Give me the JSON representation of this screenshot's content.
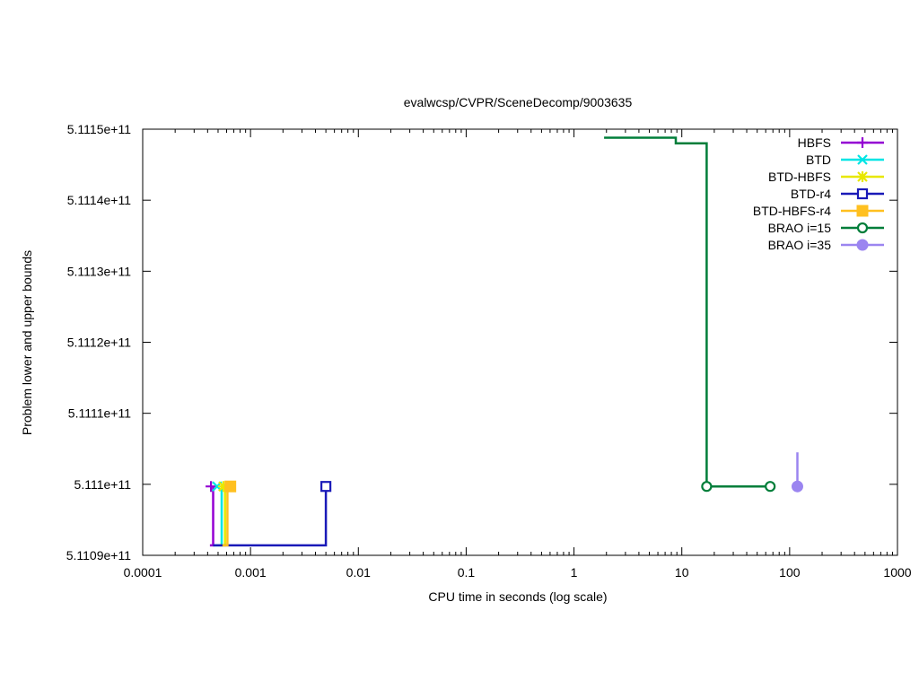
{
  "chart_data": {
    "type": "line",
    "title": "evalwcsp/CVPR/SceneDecomp/9003635",
    "xlabel": "CPU time in seconds (log scale)",
    "ylabel": "Problem lower and upper bounds",
    "x_scale": "log",
    "xlim": [
      0.0001,
      1000
    ],
    "ylim": [
      511090000000,
      511150000000
    ],
    "x_tick_values": [
      0.0001,
      0.001,
      0.01,
      0.1,
      1,
      10,
      100,
      1000
    ],
    "x_tick_labels": [
      "0.0001",
      "0.001",
      "0.01",
      "0.1",
      "1",
      "10",
      "100",
      "1000"
    ],
    "y_tick_values": [
      511090000000,
      511100000000,
      511110000000,
      511120000000,
      511130000000,
      511140000000,
      511150000000
    ],
    "y_tick_labels": [
      "5.1109e+11",
      "5.111e+11",
      "5.1111e+11",
      "5.1112e+11",
      "5.1113e+11",
      "5.1114e+11",
      "5.1115e+11"
    ],
    "grid": false,
    "legend_position": "top-right",
    "series": [
      {
        "name": "HBFS",
        "color": "#9400d3",
        "marker": "plus",
        "lines": [
          [
            [
              0.00042,
              511091400000
            ],
            [
              0.00045,
              511091400000
            ],
            [
              0.00045,
              511099700000
            ]
          ]
        ],
        "markers": [
          [
            0.00043,
            511099700000
          ]
        ]
      },
      {
        "name": "BTD",
        "color": "#00e5e5",
        "marker": "cross",
        "lines": [
          [
            [
              0.00045,
              511091400000
            ],
            [
              0.00054,
              511091400000
            ],
            [
              0.00054,
              511099700000
            ]
          ]
        ],
        "markers": [
          [
            0.00049,
            511099700000
          ]
        ]
      },
      {
        "name": "BTD-HBFS",
        "color": "#e8e800",
        "marker": "star",
        "lines": [
          [
            [
              0.00052,
              511091400000
            ],
            [
              0.00058,
              511091400000
            ],
            [
              0.00058,
              511099700000
            ]
          ]
        ],
        "markers": [
          [
            0.00056,
            511099700000
          ]
        ]
      },
      {
        "name": "BTD-r4",
        "color": "#1a1ab8",
        "marker": "open-square",
        "lines": [
          [
            [
              0.00045,
              511091400000
            ],
            [
              0.005,
              511091400000
            ],
            [
              0.005,
              511099700000
            ]
          ]
        ],
        "markers": [
          [
            0.005,
            511099700000
          ]
        ]
      },
      {
        "name": "BTD-HBFS-r4",
        "color": "#ffc020",
        "marker": "filled-square",
        "lines": [
          [
            [
              0.00055,
              511091400000
            ],
            [
              0.00061,
              511091400000
            ],
            [
              0.00061,
              511099700000
            ]
          ]
        ],
        "markers": [
          [
            0.00065,
            511099700000
          ]
        ]
      },
      {
        "name": "BRAO i=15",
        "color": "#007e3a",
        "marker": "open-circle",
        "lines": [
          [
            [
              1.9,
              511148800000
            ],
            [
              8.8,
              511148800000
            ],
            [
              8.8,
              511148000000
            ],
            [
              17,
              511148000000
            ],
            [
              17,
              511099700000
            ],
            [
              66,
              511099700000
            ]
          ]
        ],
        "markers": [
          [
            17,
            511099700000
          ],
          [
            66,
            511099700000
          ]
        ]
      },
      {
        "name": "BRAO i=35",
        "color": "#9b85f0",
        "marker": "filled-circle",
        "lines": [
          [
            [
              118,
              511104500000
            ],
            [
              118,
              511099700000
            ]
          ]
        ],
        "markers": [
          [
            118,
            511099700000
          ]
        ]
      }
    ]
  }
}
